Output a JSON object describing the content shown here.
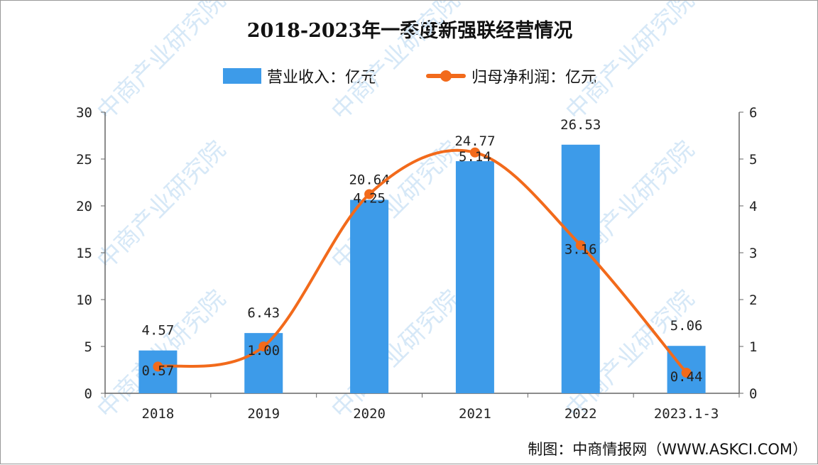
{
  "chart_data": {
    "type": "bar+line",
    "title": "2018-2023年一季度新强联经营情况",
    "categories": [
      "2018",
      "2019",
      "2020",
      "2021",
      "2022",
      "2023.1-3"
    ],
    "series": [
      {
        "name": "营业收入：亿元",
        "type": "bar",
        "axis": "left",
        "values": [
          4.57,
          6.43,
          20.64,
          24.77,
          26.53,
          5.06
        ],
        "labels": [
          "4.57",
          "6.43",
          "20.64",
          "24.77",
          "26.53",
          "5.06"
        ],
        "color": "#3d9be9"
      },
      {
        "name": "归母净利润：亿元",
        "type": "line",
        "axis": "right",
        "values": [
          0.57,
          1.0,
          4.25,
          5.14,
          3.16,
          0.44
        ],
        "labels": [
          "0.57",
          "1.00",
          "4.25",
          "5.14",
          "3.16",
          "0.44"
        ],
        "color": "#f26a1b"
      }
    ],
    "left_axis": {
      "ylim": [
        0,
        30
      ],
      "ticks": [
        "0",
        "5",
        "10",
        "15",
        "20",
        "25",
        "30"
      ]
    },
    "right_axis": {
      "ylim": [
        0,
        6
      ],
      "ticks": [
        "0",
        "1",
        "2",
        "3",
        "4",
        "5",
        "6"
      ]
    },
    "grid": false,
    "legend": "top"
  },
  "source": "制图：中商情报网（WWW.ASKCI.COM）",
  "watermark": "中商产业研究院"
}
